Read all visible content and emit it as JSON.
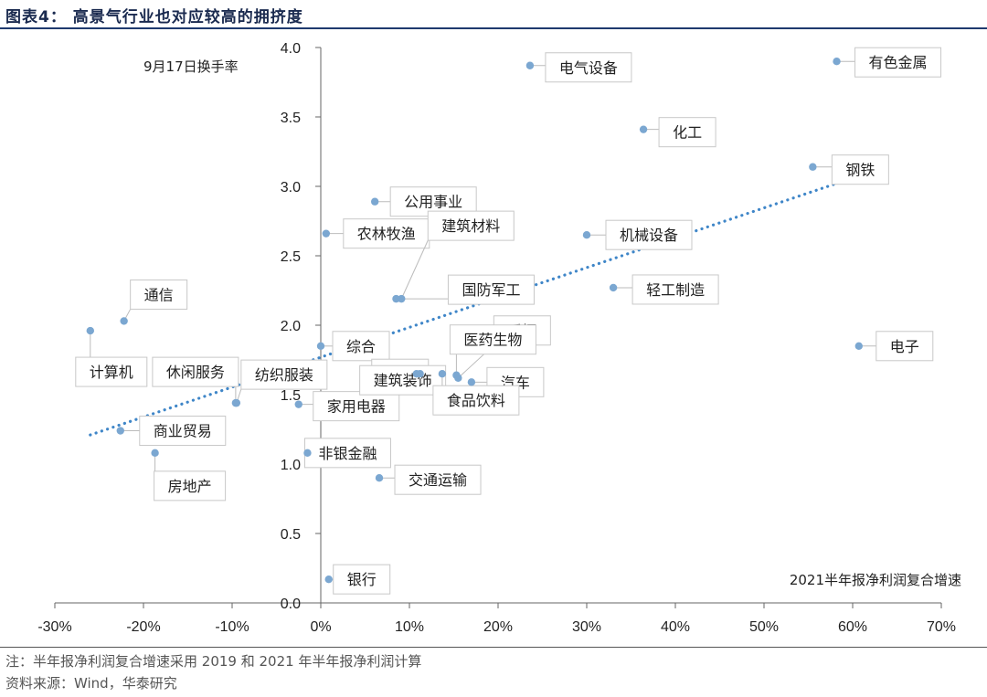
{
  "header": {
    "title": "图表4：  高景气行业也对应较高的拥挤度"
  },
  "notes": {
    "note": "注：半年报净利润复合增速采用 2019 和 2021 年半年报净利润计算",
    "source": "资料来源：Wind，华泰研究"
  },
  "chart_data": {
    "type": "scatter",
    "xlabel": "2021半年报净利润复合增速",
    "ylabel": "9月17日换手率",
    "xlim": [
      -0.3,
      0.7
    ],
    "ylim": [
      0.0,
      4.0
    ],
    "x_ticks": [
      "-30%",
      "-20%",
      "-10%",
      "0%",
      "10%",
      "20%",
      "30%",
      "40%",
      "50%",
      "60%",
      "70%"
    ],
    "y_ticks": [
      "0.0",
      "0.5",
      "1.0",
      "1.5",
      "2.0",
      "2.5",
      "3.0",
      "3.5",
      "4.0"
    ],
    "marker_color": "#7ba7d1",
    "trendline": {
      "style": "dotted",
      "color": "#3f86c8",
      "from": [
        -0.26,
        1.21
      ],
      "to": [
        0.6,
        3.06
      ]
    },
    "points": [
      {
        "name": "电气设备",
        "x": 0.236,
        "y": 3.87
      },
      {
        "name": "有色金属",
        "x": 0.582,
        "y": 3.9
      },
      {
        "name": "化工",
        "x": 0.364,
        "y": 3.41
      },
      {
        "name": "钢铁",
        "x": 0.555,
        "y": 3.14
      },
      {
        "name": "公用事业",
        "x": 0.061,
        "y": 2.89
      },
      {
        "name": "农林牧渔",
        "x": 0.006,
        "y": 2.66
      },
      {
        "name": "建筑材料",
        "x": 0.091,
        "y": 2.19
      },
      {
        "name": "机械设备",
        "x": 0.3,
        "y": 2.65
      },
      {
        "name": "国防军工",
        "x": 0.085,
        "y": 2.19
      },
      {
        "name": "轻工制造",
        "x": 0.33,
        "y": 2.27
      },
      {
        "name": "通信",
        "x": -0.222,
        "y": 2.03
      },
      {
        "name": "计算机",
        "x": -0.26,
        "y": 1.96
      },
      {
        "name": "采掘",
        "x": 0.155,
        "y": 1.62
      },
      {
        "name": "医药生物",
        "x": 0.153,
        "y": 1.64
      },
      {
        "name": "综合",
        "x": 0.0,
        "y": 1.85
      },
      {
        "name": "传媒",
        "x": 0.108,
        "y": 1.65
      },
      {
        "name": "电子",
        "x": 0.607,
        "y": 1.85
      },
      {
        "name": "汽车",
        "x": 0.17,
        "y": 1.59
      },
      {
        "name": "休闲服务",
        "x": -0.096,
        "y": 1.44
      },
      {
        "name": "纺织服装",
        "x": -0.095,
        "y": 1.44
      },
      {
        "name": "家用电器",
        "x": -0.025,
        "y": 1.43
      },
      {
        "name": "建筑装饰",
        "x": 0.112,
        "y": 1.65
      },
      {
        "name": "食品饮料",
        "x": 0.137,
        "y": 1.65
      },
      {
        "name": "商业贸易",
        "x": -0.226,
        "y": 1.24
      },
      {
        "name": "房地产",
        "x": -0.187,
        "y": 1.08
      },
      {
        "name": "非银金融",
        "x": -0.015,
        "y": 1.08
      },
      {
        "name": "交通运输",
        "x": 0.066,
        "y": 0.9
      },
      {
        "name": "银行",
        "x": 0.009,
        "y": 0.17
      }
    ]
  }
}
